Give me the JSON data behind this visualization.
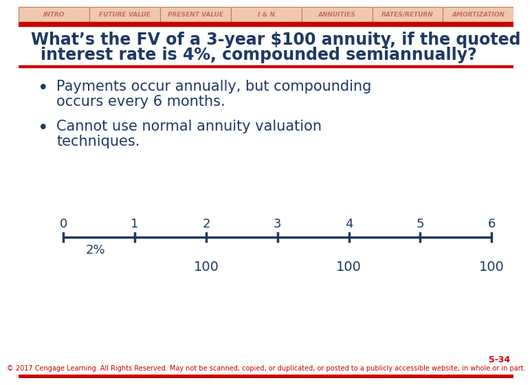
{
  "tab_labels": [
    "INTRO",
    "FUTURE VALUE",
    "PRESENT VALUE",
    "I & N",
    "ANNUITIES",
    "RATES/RETURN",
    "AMORTIZATION"
  ],
  "tab_bg": "#f0c8b0",
  "tab_border": "#c87060",
  "red_bar_color": "#cc0000",
  "title_line1": "What’s the FV of a 3-year $100 annuity, if the quoted",
  "title_line2": "interest rate is 4%, compounded semiannually?",
  "title_color": "#1f3864",
  "title_fontsize": 17,
  "bullet_color": "#1f3864",
  "bullet1_line1": "Payments occur annually, but compounding",
  "bullet1_line2": "occurs every 6 months.",
  "bullet2_line1": "Cannot use normal annuity valuation",
  "bullet2_line2": "techniques.",
  "bullet_fontsize": 15,
  "timeline_color": "#1f3864",
  "timeline_ticks": [
    0,
    1,
    2,
    3,
    4,
    5,
    6
  ],
  "timeline_labels": [
    "0",
    "1",
    "2",
    "3",
    "4",
    "5",
    "6"
  ],
  "timeline_rate_label": "2%",
  "timeline_payments": {
    "2": "100",
    "4": "100",
    "6": "100"
  },
  "timeline_fontsize": 13,
  "footer_text": "© 2017 Cengage Learning. All Rights Reserved. May not be scanned, copied, or duplicated, or posted to a publicly accessible website, in whole or in part.",
  "footer_slide": "5-34",
  "footer_color": "#cc0000",
  "footer_fontsize": 7,
  "bg_color": "#ffffff"
}
